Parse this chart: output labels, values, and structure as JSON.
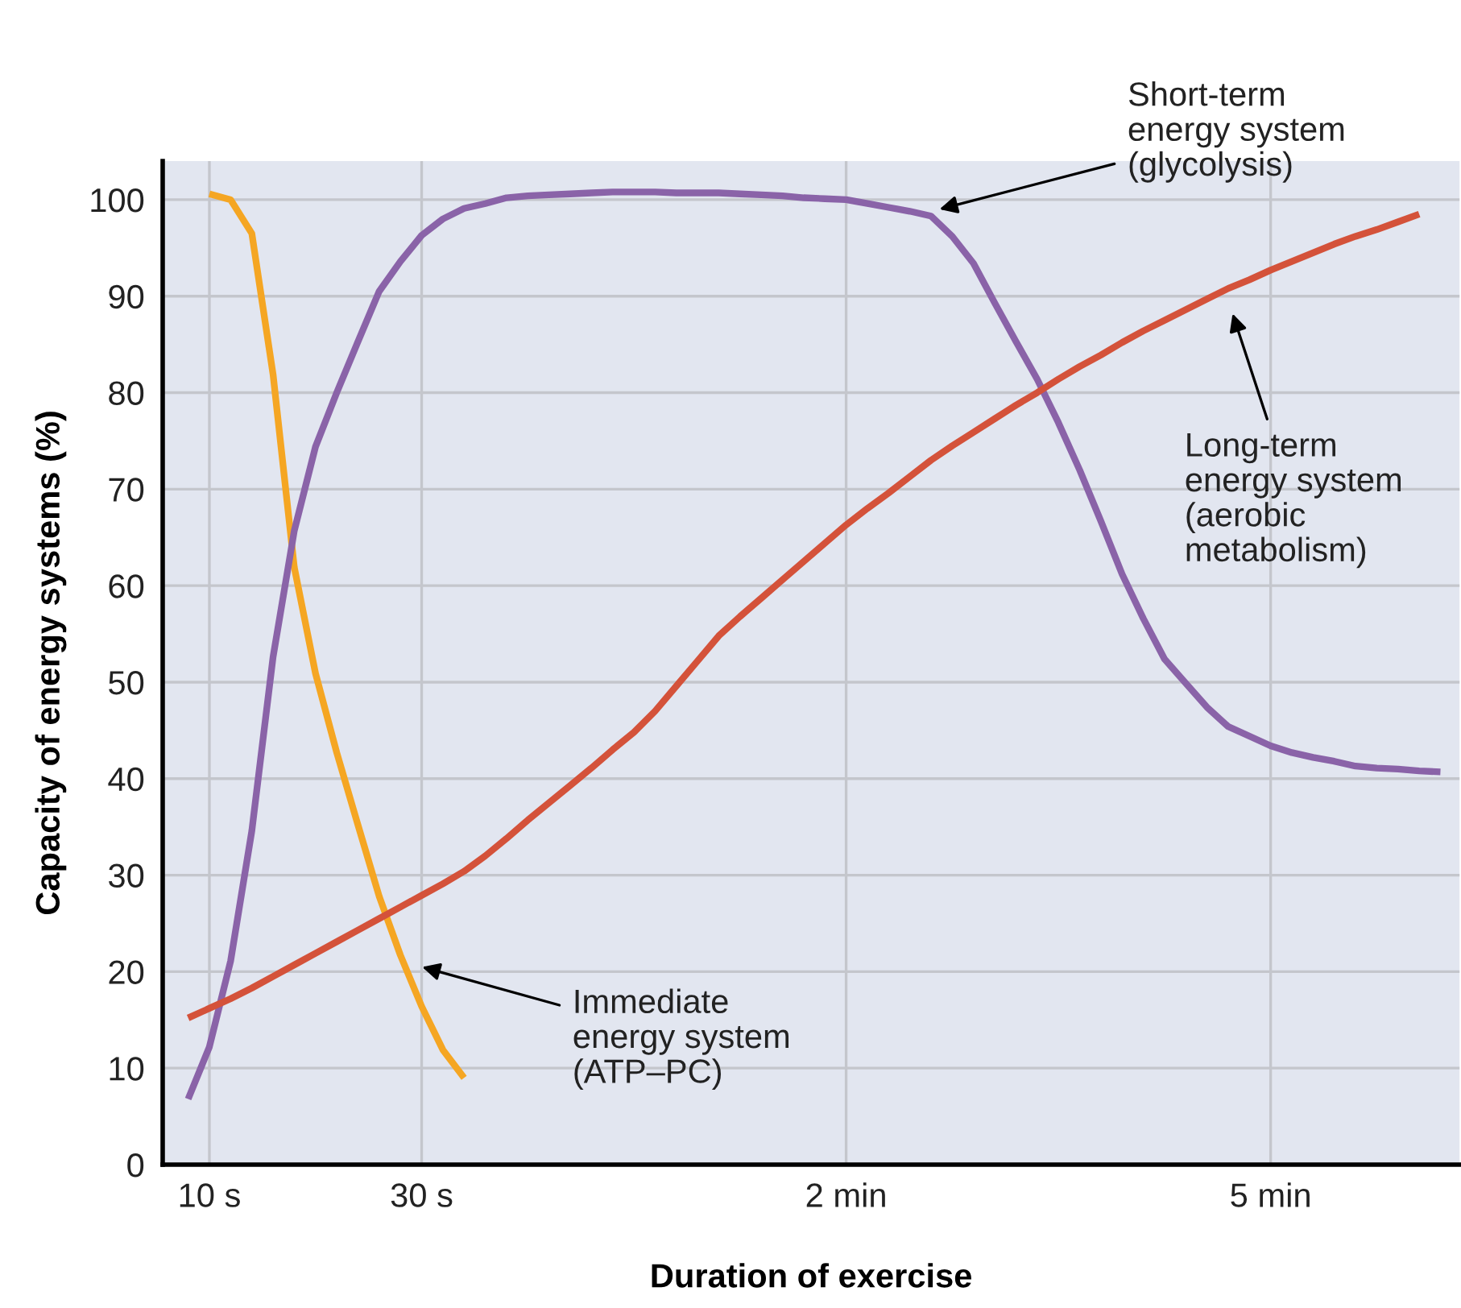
{
  "chart_data": {
    "type": "line",
    "xlabel": "Duration of exercise",
    "ylabel": "Capacity of energy systems (%)",
    "categories": [
      null,
      "10 s",
      null,
      null,
      null,
      null,
      null,
      null,
      null,
      null,
      null,
      "30 s",
      null,
      null,
      null,
      null,
      null,
      null,
      null,
      null,
      null,
      null,
      null,
      null,
      null,
      null,
      null,
      null,
      null,
      null,
      null,
      "2 min",
      null,
      null,
      null,
      null,
      null,
      null,
      null,
      null,
      null,
      null,
      null,
      null,
      null,
      null,
      null,
      null,
      null,
      null,
      null,
      "5 min",
      null,
      null,
      null,
      null,
      null,
      null,
      null,
      null
    ],
    "ylim": [
      0,
      104
    ],
    "yticks": [
      0,
      10,
      20,
      30,
      40,
      50,
      60,
      70,
      80,
      90,
      100
    ],
    "grid": true,
    "marker": "none",
    "line_style": "solid",
    "series": [
      {
        "color": "#f5a623",
        "values": [
          null,
          100.6,
          100.0,
          96.5,
          81.9,
          61.9,
          50.9,
          42.7,
          35.2,
          27.8,
          21.7,
          16.4,
          11.9,
          9.0,
          null,
          null,
          null,
          null,
          null,
          null,
          null,
          null,
          null,
          null,
          null,
          null,
          null,
          null,
          null,
          null,
          null,
          null,
          null,
          null,
          null,
          null,
          null,
          null,
          null,
          null,
          null,
          null,
          null,
          null,
          null,
          null,
          null,
          null,
          null,
          null,
          null,
          null,
          null,
          null,
          null,
          null,
          null,
          null,
          null,
          null
        ]
      },
      {
        "color": "#8a63a8",
        "values": [
          6.8,
          12.2,
          21.1,
          34.6,
          52.6,
          65.7,
          74.4,
          80.0,
          85.3,
          90.5,
          93.6,
          96.3,
          98.0,
          99.1,
          99.6,
          100.2,
          100.4,
          100.5,
          100.6,
          100.7,
          100.8,
          100.8,
          100.8,
          100.7,
          100.7,
          100.7,
          100.6,
          100.5,
          100.4,
          100.2,
          100.1,
          100.0,
          99.6,
          99.2,
          98.8,
          98.3,
          96.2,
          93.4,
          89.3,
          85.3,
          81.4,
          76.9,
          72.0,
          66.7,
          61.2,
          56.6,
          52.4,
          49.9,
          47.4,
          45.4,
          44.4,
          43.4,
          42.7,
          42.2,
          41.8,
          41.3,
          41.1,
          41.0,
          40.8,
          40.7
        ]
      },
      {
        "color": "#d4523a",
        "values": [
          15.2,
          16.2,
          17.2,
          18.3,
          19.5,
          20.7,
          21.9,
          23.1,
          24.3,
          25.5,
          26.7,
          27.9,
          29.1,
          30.4,
          32.0,
          33.8,
          35.7,
          37.5,
          39.3,
          41.1,
          43.0,
          44.8,
          47.0,
          49.6,
          52.2,
          54.8,
          56.8,
          58.7,
          60.6,
          62.5,
          64.4,
          66.3,
          68.0,
          69.6,
          71.3,
          73.0,
          74.5,
          75.9,
          77.3,
          78.7,
          80.0,
          81.4,
          82.7,
          83.9,
          85.2,
          86.4,
          87.5,
          88.6,
          89.7,
          90.8,
          91.7,
          92.7,
          93.6,
          94.5,
          95.4,
          96.2,
          96.9,
          97.7,
          98.5,
          null
        ]
      }
    ],
    "annotations": [
      "Immediate\nenergy system\n(ATP–PC)",
      "Short-term\nenergy system\n(glycolysis)",
      "Long-term\nenergy system\n(aerobic\nmetabolism)"
    ]
  }
}
